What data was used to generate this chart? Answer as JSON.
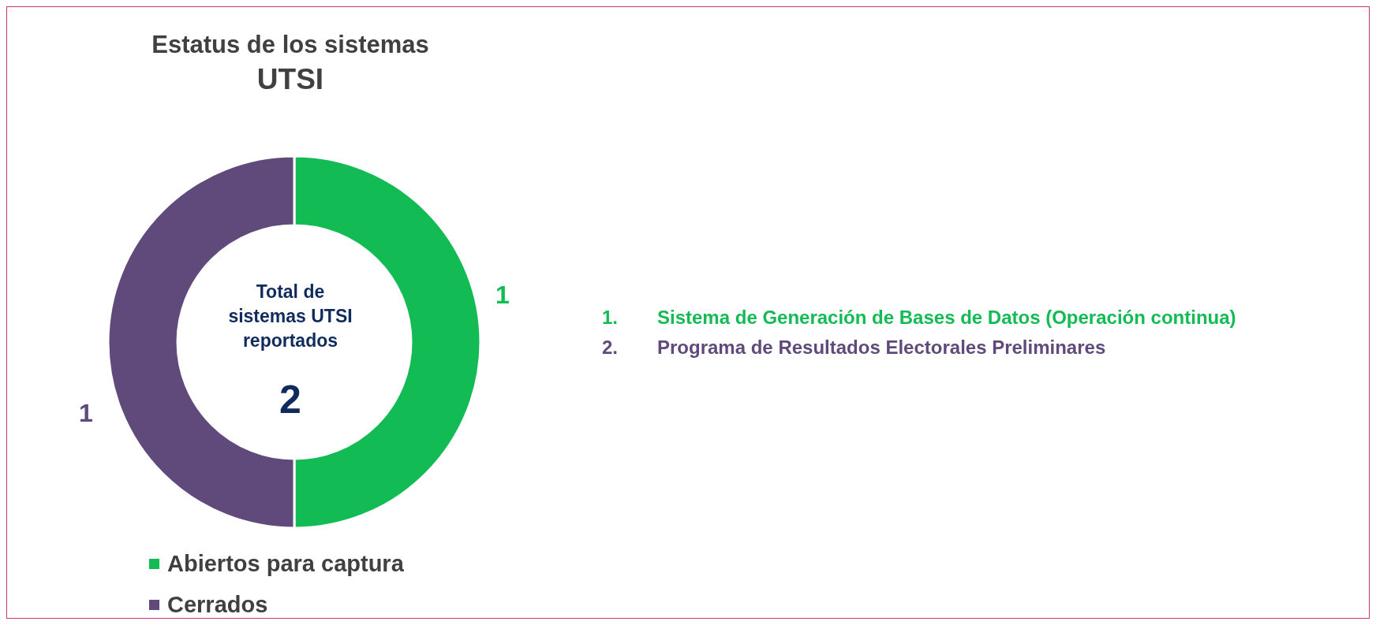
{
  "chart_data": {
    "type": "donut",
    "title": "Estatus de los sistemas\nUTSI",
    "categories": [
      "Abiertos para captura",
      "Cerrados"
    ],
    "values": [
      1,
      1
    ],
    "colors": [
      "#13bb55",
      "#604a7b"
    ],
    "data_labels": true,
    "legend": "bottom",
    "annotations": [
      "Total de sistemas UTSI reportados",
      "2",
      "1.\tSistema de Generación de Bases de Datos (Operación continua)",
      "2.\tPrograma de Resultados Electorales Preliminares"
    ]
  }
}
